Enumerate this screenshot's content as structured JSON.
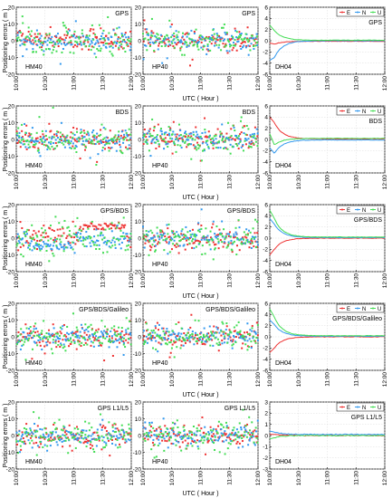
{
  "figure": {
    "ylabel": "Positioning errors ( m )",
    "xlabel": "UTC ( Hour )",
    "legend": [
      "E",
      "N",
      "U"
    ],
    "colors": {
      "E": "#ee3333",
      "N": "#3399ee",
      "U": "#44dd55"
    }
  },
  "chart_data": {
    "type": "scatter",
    "x_ticks": [
      "10:00",
      "10:30",
      "11:00",
      "11:30",
      "12:00"
    ],
    "columns": [
      {
        "station": "HM40",
        "kind": "scatter",
        "ylim": [
          -20,
          20
        ],
        "yticks": [
          -20,
          -10,
          0,
          10,
          20
        ]
      },
      {
        "station": "HP40",
        "kind": "scatter",
        "ylim": [
          -20,
          20
        ],
        "yticks": [
          -20,
          -10,
          0,
          10,
          20
        ]
      },
      {
        "station": "DH04",
        "kind": "line",
        "legend": "top-right"
      }
    ],
    "rows": [
      {
        "system": "GPS",
        "dh04_ylim": [
          -6,
          6
        ],
        "dh04_yticks": [
          -6,
          -4,
          -2,
          0,
          2,
          4,
          6
        ],
        "dh04_series": [
          {
            "name": "E",
            "start": -0.4,
            "peak": -0.6,
            "settle": -0.1
          },
          {
            "name": "N",
            "start": -3.5,
            "peak": -3.0,
            "settle": 0.0
          },
          {
            "name": "U",
            "start": 2.8,
            "peak": 1.8,
            "settle": 0.1
          }
        ]
      },
      {
        "system": "BDS",
        "dh04_ylim": [
          -6,
          6
        ],
        "dh04_yticks": [
          -6,
          -4,
          -2,
          0,
          2,
          4,
          6
        ],
        "dh04_series": [
          {
            "name": "E",
            "start": 4.0,
            "peak": 3.0,
            "settle": 0.1
          },
          {
            "name": "N",
            "start": -1.5,
            "peak": -2.5,
            "settle": -0.1
          },
          {
            "name": "U",
            "start": 1.0,
            "peak": -1.0,
            "settle": 0.2
          }
        ]
      },
      {
        "system": "GPS/BDS",
        "dh04_ylim": [
          -6,
          6
        ],
        "dh04_yticks": [
          -6,
          -4,
          -2,
          0,
          2,
          4,
          6
        ],
        "dh04_series": [
          {
            "name": "E",
            "start": -3.0,
            "peak": -2.0,
            "settle": 0.0
          },
          {
            "name": "N",
            "start": 3.5,
            "peak": 2.5,
            "settle": 0.1
          },
          {
            "name": "U",
            "start": 5.0,
            "peak": 3.5,
            "settle": 0.2
          }
        ]
      },
      {
        "system": "GPS/BDS/Galileo",
        "dh04_ylim": [
          -6,
          6
        ],
        "dh04_yticks": [
          -6,
          -4,
          -2,
          0,
          2,
          4,
          6
        ],
        "dh04_series": [
          {
            "name": "E",
            "start": -2.8,
            "peak": -2.0,
            "settle": 0.0
          },
          {
            "name": "N",
            "start": 3.0,
            "peak": 2.2,
            "settle": 0.1
          },
          {
            "name": "U",
            "start": 5.0,
            "peak": 3.5,
            "settle": 0.2
          }
        ]
      },
      {
        "system": "GPS L1/L5",
        "dh04_ylim": [
          -3,
          3
        ],
        "dh04_yticks": [
          -3,
          -2,
          -1,
          0,
          1,
          2,
          3
        ],
        "dh04_series": [
          {
            "name": "E",
            "start": 0.1,
            "peak": 0.1,
            "settle": 0.0
          },
          {
            "name": "N",
            "start": 0.4,
            "peak": 0.3,
            "settle": 0.1
          },
          {
            "name": "U",
            "start": -0.3,
            "peak": -0.2,
            "settle": 0.0
          }
        ]
      }
    ],
    "grid": true
  }
}
